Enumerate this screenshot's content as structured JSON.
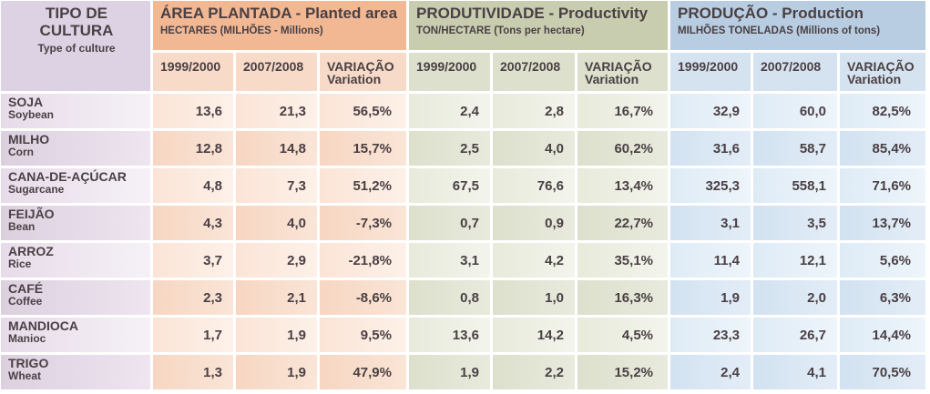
{
  "header": {
    "crop_pt": "TIPO DE CULTURA",
    "crop_en": "Type of culture",
    "area_title": "ÁREA PLANTADA - Planted area",
    "area_unit": "HECTARES (MILHÕES - Millions)",
    "prod_title": "PRODUTIVIDADE - Productivity",
    "prod_unit": "TON/HECTARE  (Tons per hectare)",
    "pdc_title": "PRODUÇÃO - Production",
    "pdc_unit": "MILHÕES TONELADAS  (Millions of tons)",
    "y1": "1999/2000",
    "y2": "2007/2008",
    "var_pt": "VARIAÇÃO",
    "var_en": "Variation"
  },
  "colors": {
    "area": "#f2b894",
    "productivity": "#c9cdb0",
    "production": "#b8cde2",
    "crop": "#dcd2e3"
  },
  "rows": [
    {
      "pt": "SOJA",
      "en": "Soybean",
      "a1": "13,6",
      "a2": "21,3",
      "av": "56,5%",
      "p1": "2,4",
      "p2": "2,8",
      "pv": "16,7%",
      "d1": "32,9",
      "d2": "60,0",
      "dv": "82,5%"
    },
    {
      "pt": "MILHO",
      "en": "Corn",
      "a1": "12,8",
      "a2": "14,8",
      "av": "15,7%",
      "p1": "2,5",
      "p2": "4,0",
      "pv": "60,2%",
      "d1": "31,6",
      "d2": "58,7",
      "dv": "85,4%"
    },
    {
      "pt": "CANA-DE-AÇÚCAR",
      "en": "Sugarcane",
      "a1": "4,8",
      "a2": "7,3",
      "av": "51,2%",
      "p1": "67,5",
      "p2": "76,6",
      "pv": "13,4%",
      "d1": "325,3",
      "d2": "558,1",
      "dv": "71,6%"
    },
    {
      "pt": "FEIJÃO",
      "en": "Bean",
      "a1": "4,3",
      "a2": "4,0",
      "av": "-7,3%",
      "p1": "0,7",
      "p2": "0,9",
      "pv": "22,7%",
      "d1": "3,1",
      "d2": "3,5",
      "dv": "13,7%"
    },
    {
      "pt": "ARROZ",
      "en": "Rice",
      "a1": "3,7",
      "a2": "2,9",
      "av": "-21,8%",
      "p1": "3,1",
      "p2": "4,2",
      "pv": "35,1%",
      "d1": "11,4",
      "d2": "12,1",
      "dv": "5,6%"
    },
    {
      "pt": "CAFÉ",
      "en": "Coffee",
      "a1": "2,3",
      "a2": "2,1",
      "av": "-8,6%",
      "p1": "0,8",
      "p2": "1,0",
      "pv": "16,3%",
      "d1": "1,9",
      "d2": "2,0",
      "dv": "6,3%"
    },
    {
      "pt": "MANDIOCA",
      "en": "Manioc",
      "a1": "1,7",
      "a2": "1,9",
      "av": "9,5%",
      "p1": "13,6",
      "p2": "14,2",
      "pv": "4,5%",
      "d1": "23,3",
      "d2": "26,7",
      "dv": "14,4%"
    },
    {
      "pt": "TRIGO",
      "en": "Wheat",
      "a1": "1,3",
      "a2": "1,9",
      "av": "47,9%",
      "p1": "1,9",
      "p2": "2,2",
      "pv": "15,2%",
      "d1": "2,4",
      "d2": "4,1",
      "dv": "70,5%"
    }
  ]
}
